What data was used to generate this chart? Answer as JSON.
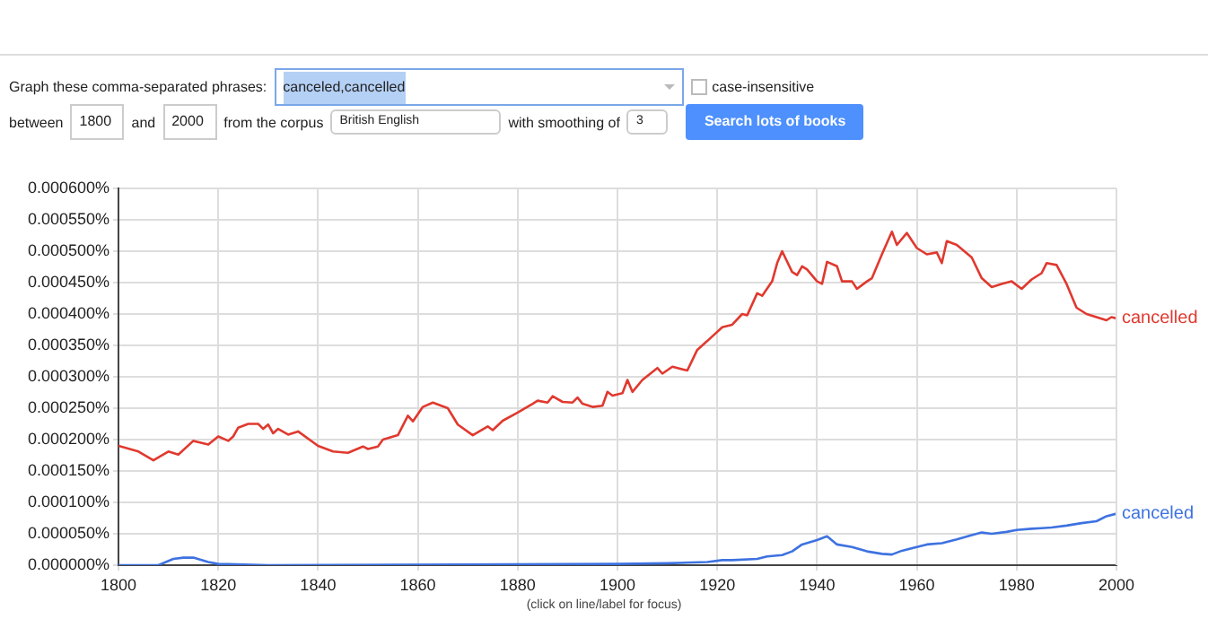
{
  "chart_data": {
    "type": "line",
    "annotations": [
      "Graph these comma-separated phrases:",
      "canceled,cancelled",
      "case-insensitive",
      "between",
      "1800",
      "and",
      "2000",
      "from the corpus",
      "British English",
      "with smoothing of",
      "3",
      "Search lots of books",
      "(click on line/label for focus)"
    ],
    "xlim": [
      1800,
      2000
    ],
    "xticks": [
      1800,
      1820,
      1840,
      1860,
      1880,
      1900,
      1920,
      1940,
      1960,
      1980,
      2000
    ],
    "ylim": [
      0,
      0.0006
    ],
    "yticks": [
      {
        "value": 0,
        "label": "0.000000%"
      },
      {
        "value": 5e-05,
        "label": "0.000050%"
      },
      {
        "value": 0.0001,
        "label": "0.000100%"
      },
      {
        "value": 0.00015,
        "label": "0.000150%"
      },
      {
        "value": 0.0002,
        "label": "0.000200%"
      },
      {
        "value": 0.00025,
        "label": "0.000250%"
      },
      {
        "value": 0.0003,
        "label": "0.000300%"
      },
      {
        "value": 0.00035,
        "label": "0.000350%"
      },
      {
        "value": 0.0004,
        "label": "0.000400%"
      },
      {
        "value": 0.00045,
        "label": "0.000450%"
      },
      {
        "value": 0.0005,
        "label": "0.000500%"
      },
      {
        "value": 0.00055,
        "label": "0.000550%"
      },
      {
        "value": 0.0006,
        "label": "0.000600%"
      }
    ],
    "grid": true,
    "legend": false,
    "marker": "none",
    "line_style": "solid",
    "series": [
      {
        "name": "cancelled",
        "color": "#e0392f",
        "x": [
          1800,
          1804,
          1807,
          1810,
          1812,
          1815,
          1818,
          1820,
          1822,
          1823,
          1824,
          1826,
          1828,
          1829,
          1830,
          1831,
          1832,
          1834,
          1836,
          1840,
          1843,
          1846,
          1849,
          1850,
          1852,
          1853,
          1856,
          1858,
          1859,
          1861,
          1863,
          1866,
          1868,
          1871,
          1874,
          1875,
          1877,
          1880,
          1883,
          1884,
          1886,
          1887,
          1889,
          1891,
          1892,
          1893,
          1895,
          1897,
          1898,
          1899,
          1901,
          1902,
          1903,
          1905,
          1908,
          1909,
          1911,
          1914,
          1916,
          1918,
          1921,
          1923,
          1925,
          1926,
          1928,
          1929,
          1931,
          1932,
          1933,
          1935,
          1936,
          1937,
          1938,
          1940,
          1941,
          1942,
          1944,
          1945,
          1947,
          1948,
          1950,
          1951,
          1952,
          1953,
          1955,
          1956,
          1958,
          1960,
          1962,
          1964,
          1965,
          1966,
          1968,
          1971,
          1973,
          1975,
          1977,
          1979,
          1981,
          1983,
          1985,
          1986,
          1988,
          1990,
          1992,
          1994,
          1996,
          1998,
          1999,
          2000
        ],
        "values": [
          0.00019,
          0.000181,
          0.000167,
          0.000181,
          0.000176,
          0.000198,
          0.000192,
          0.000205,
          0.000198,
          0.000205,
          0.000219,
          0.000225,
          0.000225,
          0.000217,
          0.000224,
          0.00021,
          0.000217,
          0.000208,
          0.000213,
          0.00019,
          0.000181,
          0.000179,
          0.000189,
          0.000185,
          0.000189,
          0.0002,
          0.000207,
          0.000238,
          0.000229,
          0.000252,
          0.000259,
          0.00025,
          0.000224,
          0.000207,
          0.000221,
          0.000215,
          0.00023,
          0.000243,
          0.000257,
          0.000262,
          0.000259,
          0.000269,
          0.00026,
          0.000259,
          0.000267,
          0.000257,
          0.000252,
          0.000254,
          0.000276,
          0.00027,
          0.000274,
          0.000295,
          0.000276,
          0.000295,
          0.000314,
          0.000305,
          0.000316,
          0.00031,
          0.000343,
          0.000357,
          0.000379,
          0.000383,
          0.0004,
          0.000398,
          0.000433,
          0.000429,
          0.000452,
          0.000481,
          0.0005,
          0.000467,
          0.000462,
          0.000476,
          0.000471,
          0.000452,
          0.000448,
          0.000483,
          0.000476,
          0.000452,
          0.000452,
          0.00044,
          0.000452,
          0.000457,
          0.000476,
          0.000495,
          0.000531,
          0.00051,
          0.000529,
          0.000505,
          0.000495,
          0.000498,
          0.000481,
          0.000516,
          0.00051,
          0.00049,
          0.000457,
          0.000443,
          0.000448,
          0.000452,
          0.00044,
          0.000455,
          0.000465,
          0.000481,
          0.000478,
          0.000448,
          0.00041,
          0.0004,
          0.000395,
          0.00039,
          0.000395,
          0.000393
        ]
      },
      {
        "name": "canceled",
        "color": "#3d72e0",
        "x": [
          1800,
          1808,
          1811,
          1813,
          1815,
          1818,
          1820,
          1830,
          1900,
          1910,
          1918,
          1921,
          1923,
          1928,
          1930,
          1933,
          1935,
          1937,
          1940,
          1942,
          1944,
          1947,
          1950,
          1953,
          1955,
          1957,
          1960,
          1962,
          1965,
          1968,
          1971,
          1973,
          1975,
          1978,
          1980,
          1983,
          1985,
          1987,
          1990,
          1993,
          1996,
          1998,
          2000
        ],
        "values": [
          0,
          0,
          1e-05,
          1.2e-05,
          1.2e-05,
          5e-06,
          2e-06,
          0,
          2e-06,
          3e-06,
          5e-06,
          8e-06,
          8e-06,
          1e-05,
          1.4e-05,
          1.6e-05,
          2.2e-05,
          3.3e-05,
          4e-05,
          4.6e-05,
          3.3e-05,
          2.9e-05,
          2.2e-05,
          1.8e-05,
          1.7e-05,
          2.3e-05,
          2.9e-05,
          3.3e-05,
          3.5e-05,
          4.1e-05,
          4.8e-05,
          5.2e-05,
          5e-05,
          5.3e-05,
          5.6e-05,
          5.8e-05,
          5.9e-05,
          6e-05,
          6.3e-05,
          6.7e-05,
          7e-05,
          7.8e-05,
          8.2e-05
        ]
      }
    ]
  }
}
